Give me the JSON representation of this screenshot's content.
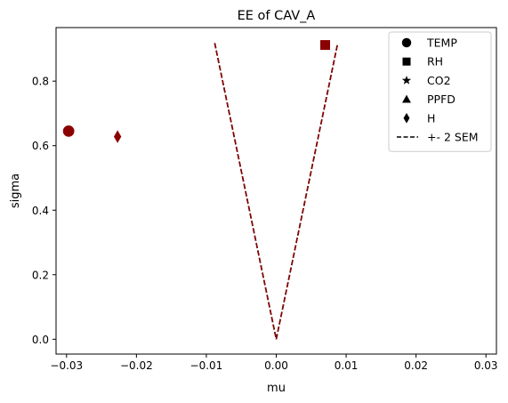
{
  "chart_data": {
    "type": "scatter",
    "title": "EE of CAV_A",
    "xlabel": "mu",
    "ylabel": "sigma",
    "xlim": [
      -0.0315,
      0.0315
    ],
    "ylim": [
      -0.046,
      0.966
    ],
    "xticks": [
      -0.03,
      -0.02,
      -0.01,
      0.0,
      0.01,
      0.02,
      0.03
    ],
    "xtick_labels": [
      "−0.03",
      "−0.02",
      "−0.01",
      "0.00",
      "0.01",
      "0.02",
      "0.03"
    ],
    "yticks": [
      0.0,
      0.2,
      0.4,
      0.6,
      0.8
    ],
    "ytick_labels": [
      "0.0",
      "0.2",
      "0.4",
      "0.6",
      "0.8"
    ],
    "grid": false,
    "legend_position": "top-right",
    "marker_color": "#8b0000",
    "series": [
      {
        "name": "TEMP",
        "marker": "circle",
        "x": -0.0297,
        "y": 0.645
      },
      {
        "name": "RH",
        "marker": "square",
        "x": 0.007,
        "y": 0.912
      },
      {
        "name": "CO2",
        "marker": "star",
        "x": null,
        "y": null
      },
      {
        "name": "PPFD",
        "marker": "triangle",
        "x": null,
        "y": null
      },
      {
        "name": "H",
        "marker": "diamond",
        "x": -0.0227,
        "y": 0.628
      }
    ],
    "sem_lines": {
      "name": "+- 2 SEM",
      "style": "dashed",
      "color": "#000000",
      "overlay_color": "#8b0000",
      "points": [
        [
          -0.0088,
          0.918
        ],
        [
          0.0,
          0.0
        ],
        [
          0.0088,
          0.918
        ]
      ]
    },
    "legend_marker_color": "#000000"
  }
}
